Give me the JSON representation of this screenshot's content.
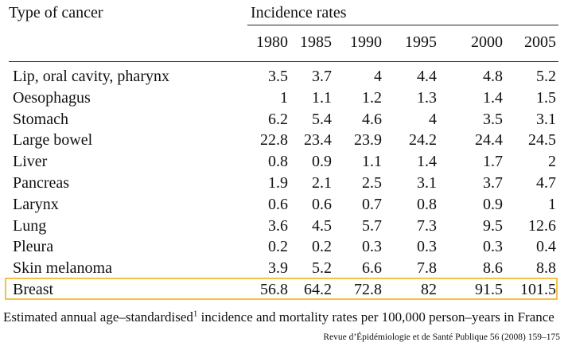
{
  "table": {
    "row_header": "Type of cancer",
    "group_header": "Incidence rates",
    "years": [
      "1980",
      "1985",
      "1990",
      "1995",
      "2000",
      "2005"
    ],
    "rows": [
      {
        "name": "Lip, oral cavity, pharynx",
        "values": [
          "3.5",
          "3.7",
          "4",
          "4.4",
          "4.8",
          "5.2"
        ]
      },
      {
        "name": "Oesophagus",
        "values": [
          "1",
          "1.1",
          "1.2",
          "1.3",
          "1.4",
          "1.5"
        ]
      },
      {
        "name": "Stomach",
        "values": [
          "6.2",
          "5.4",
          "4.6",
          "4",
          "3.5",
          "3.1"
        ]
      },
      {
        "name": "Large bowel",
        "values": [
          "22.8",
          "23.4",
          "23.9",
          "24.2",
          "24.4",
          "24.5"
        ]
      },
      {
        "name": "Liver",
        "values": [
          "0.8",
          "0.9",
          "1.1",
          "1.4",
          "1.7",
          "2"
        ]
      },
      {
        "name": "Pancreas",
        "values": [
          "1.9",
          "2.1",
          "2.5",
          "3.1",
          "3.7",
          "4.7"
        ]
      },
      {
        "name": "Larynx",
        "values": [
          "0.6",
          "0.6",
          "0.7",
          "0.8",
          "0.9",
          "1"
        ]
      },
      {
        "name": "Lung",
        "values": [
          "3.6",
          "4.5",
          "5.7",
          "7.3",
          "9.5",
          "12.6"
        ]
      },
      {
        "name": "Pleura",
        "values": [
          "0.2",
          "0.2",
          "0.3",
          "0.3",
          "0.3",
          "0.4"
        ]
      },
      {
        "name": "Skin melanoma",
        "values": [
          "3.9",
          "5.2",
          "6.6",
          "7.8",
          "8.6",
          "8.8"
        ]
      },
      {
        "name": "Breast",
        "values": [
          "56.8",
          "64.2",
          "72.8",
          "82",
          "91.5",
          "101.5"
        ],
        "highlighted": true
      }
    ]
  },
  "caption": {
    "before_sup": "Estimated annual age–standardised",
    "sup": "1",
    "after_sup": " incidence and mortality rates per 100,000 person–years in France"
  },
  "source": "Revue d’Épidémiologie et de Santé Publique 56 (2008) 159–175",
  "colors": {
    "highlight_border": "#f4c24a",
    "text": "#111111",
    "rule": "#222222"
  }
}
